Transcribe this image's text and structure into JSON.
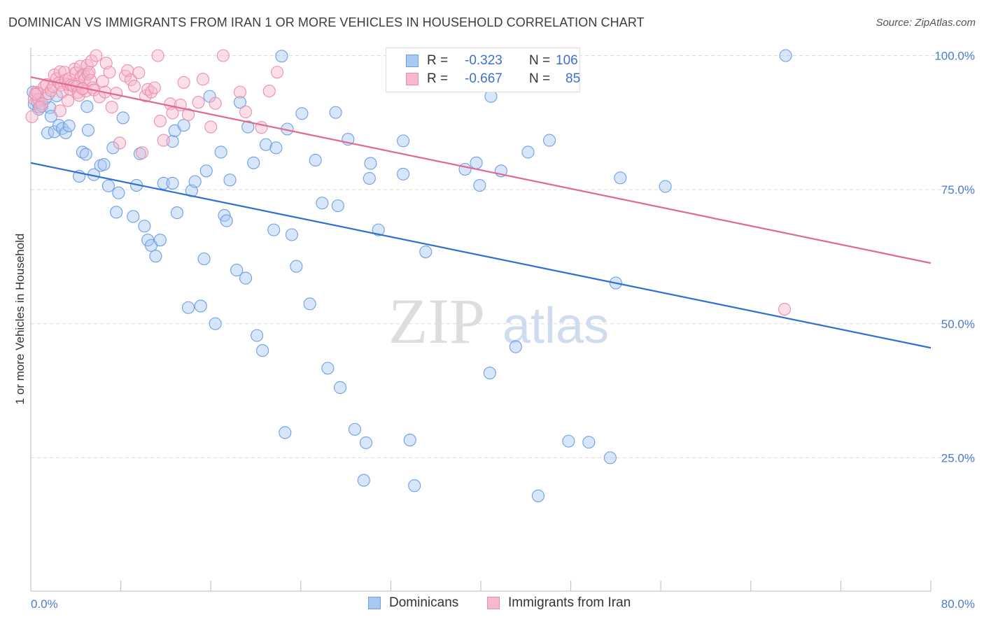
{
  "header": {
    "title": "DOMINICAN VS IMMIGRANTS FROM IRAN 1 OR MORE VEHICLES IN HOUSEHOLD CORRELATION CHART",
    "source": "Source: ZipAtlas.com"
  },
  "watermark": {
    "zip": "ZIP",
    "atlas": "atlas"
  },
  "legend": {
    "rows": [
      {
        "r_label": "R =",
        "r_value": "-0.323",
        "n_label": "N =",
        "n_value": "106"
      },
      {
        "r_label": "R =",
        "r_value": "-0.667",
        "n_label": "N =",
        "n_value": "85"
      }
    ]
  },
  "bottom_legend": {
    "series1": "Dominicans",
    "series2": "Immigrants from Iran"
  },
  "colors": {
    "blue_fill": "#a9c8f2",
    "blue_stroke": "#6d9ee6",
    "blue_line": "#2f6fd1",
    "pink_fill": "#f6b8cb",
    "pink_stroke": "#ea8fab",
    "pink_line": "#e0698f"
  },
  "chart_data": {
    "type": "scatter",
    "title": "DOMINICAN VS IMMIGRANTS FROM IRAN 1 OR MORE VEHICLES IN HOUSEHOLD CORRELATION CHART",
    "xlabel": "",
    "ylabel": "1 or more Vehicles in Household",
    "xlim": [
      0,
      80
    ],
    "ylim": [
      0,
      103
    ],
    "x_tick_labels": [
      "0.0%",
      "80.0%"
    ],
    "y_tick_labels": [
      "100.0%",
      "75.0%",
      "50.0%",
      "25.0%"
    ],
    "y_tick_values": [
      100,
      75,
      50,
      25
    ],
    "grid": true,
    "series": [
      {
        "name": "Dominicans",
        "trend": {
          "x": [
            0,
            80
          ],
          "y": [
            80.0,
            45.5
          ]
        },
        "points": [
          [
            0.2,
            93.2
          ],
          [
            0.3,
            91.0
          ],
          [
            0.6,
            91.3
          ],
          [
            0.7,
            90.0
          ],
          [
            1.0,
            90.6
          ],
          [
            1.5,
            85.6
          ],
          [
            1.7,
            90.3
          ],
          [
            2.1,
            85.8
          ],
          [
            2.5,
            87.0
          ],
          [
            2.8,
            86.4
          ],
          [
            3.1,
            85.6
          ],
          [
            3.4,
            86.9
          ],
          [
            4.3,
            77.5
          ],
          [
            4.6,
            82.0
          ],
          [
            4.9,
            81.6
          ],
          [
            5.1,
            86.1
          ],
          [
            5.6,
            77.8
          ],
          [
            6.2,
            79.5
          ],
          [
            6.5,
            79.7
          ],
          [
            6.9,
            75.7
          ],
          [
            7.3,
            82.8
          ],
          [
            7.6,
            70.8
          ],
          [
            7.8,
            74.4
          ],
          [
            8.2,
            88.4
          ],
          [
            9.1,
            70.0
          ],
          [
            9.4,
            75.8
          ],
          [
            9.7,
            81.7
          ],
          [
            10.1,
            68.2
          ],
          [
            10.4,
            65.6
          ],
          [
            10.7,
            64.6
          ],
          [
            11.1,
            62.6
          ],
          [
            11.5,
            65.6
          ],
          [
            11.8,
            76.2
          ],
          [
            12.6,
            76.2
          ],
          [
            12.6,
            84.0
          ],
          [
            12.8,
            86.0
          ],
          [
            13.0,
            70.7
          ],
          [
            13.6,
            87.0
          ],
          [
            14.0,
            53.0
          ],
          [
            14.3,
            74.8
          ],
          [
            14.6,
            76.5
          ],
          [
            15.1,
            53.3
          ],
          [
            15.4,
            62.1
          ],
          [
            15.6,
            78.5
          ],
          [
            15.9,
            92.4
          ],
          [
            16.4,
            50.0
          ],
          [
            16.9,
            82.0
          ],
          [
            17.2,
            70.2
          ],
          [
            17.4,
            69.2
          ],
          [
            17.7,
            76.8
          ],
          [
            18.3,
            60.0
          ],
          [
            18.6,
            91.3
          ],
          [
            19.1,
            58.5
          ],
          [
            19.3,
            86.7
          ],
          [
            19.8,
            80.0
          ],
          [
            20.1,
            47.8
          ],
          [
            20.6,
            45.0
          ],
          [
            20.9,
            83.4
          ],
          [
            21.6,
            67.5
          ],
          [
            21.8,
            82.8
          ],
          [
            22.3,
            99.9
          ],
          [
            22.6,
            29.7
          ],
          [
            22.8,
            86.3
          ],
          [
            23.2,
            66.6
          ],
          [
            23.6,
            60.7
          ],
          [
            24.1,
            89.2
          ],
          [
            24.8,
            53.7
          ],
          [
            25.3,
            80.5
          ],
          [
            25.9,
            72.5
          ],
          [
            26.4,
            41.7
          ],
          [
            27.1,
            89.4
          ],
          [
            27.3,
            72.0
          ],
          [
            27.5,
            38.1
          ],
          [
            28.2,
            84.4
          ],
          [
            28.8,
            30.3
          ],
          [
            29.6,
            20.8
          ],
          [
            29.8,
            27.8
          ],
          [
            30.1,
            77.1
          ],
          [
            30.2,
            79.9
          ],
          [
            30.9,
            67.5
          ],
          [
            33.1,
            77.9
          ],
          [
            33.1,
            84.1
          ],
          [
            33.7,
            28.3
          ],
          [
            34.1,
            19.8
          ],
          [
            35.1,
            63.4
          ],
          [
            38.6,
            78.8
          ],
          [
            39.6,
            80.0
          ],
          [
            39.9,
            75.8
          ],
          [
            40.8,
            40.8
          ],
          [
            40.9,
            92.4
          ],
          [
            41.8,
            78.5
          ],
          [
            43.1,
            45.7
          ],
          [
            44.2,
            82.0
          ],
          [
            45.1,
            17.9
          ],
          [
            46.1,
            84.2
          ],
          [
            47.8,
            28.1
          ],
          [
            49.6,
            27.9
          ],
          [
            51.5,
            25.0
          ],
          [
            52.0,
            57.6
          ],
          [
            52.4,
            77.2
          ],
          [
            56.4,
            75.6
          ],
          [
            67.1,
            100.0
          ],
          [
            1.3,
            92.0
          ],
          [
            2.3,
            92.5
          ],
          [
            5.0,
            90.5
          ],
          [
            1.8,
            88.7
          ]
        ]
      },
      {
        "name": "Immigrants from Iran",
        "trend": {
          "x": [
            0,
            80
          ],
          "y": [
            96.0,
            61.3
          ]
        },
        "points": [
          [
            0.1,
            88.6
          ],
          [
            0.3,
            91.9
          ],
          [
            0.5,
            93.2
          ],
          [
            0.6,
            93.0
          ],
          [
            0.7,
            91.8
          ],
          [
            1.0,
            91.0
          ],
          [
            1.2,
            94.2
          ],
          [
            1.4,
            94.6
          ],
          [
            1.6,
            92.9
          ],
          [
            1.8,
            93.5
          ],
          [
            2.0,
            94.2
          ],
          [
            2.1,
            96.4
          ],
          [
            2.3,
            95.7
          ],
          [
            2.5,
            94.9
          ],
          [
            2.6,
            97.0
          ],
          [
            2.7,
            94.5
          ],
          [
            2.8,
            93.2
          ],
          [
            3.0,
            96.9
          ],
          [
            3.1,
            95.4
          ],
          [
            3.3,
            94.6
          ],
          [
            3.4,
            95.7
          ],
          [
            3.5,
            93.7
          ],
          [
            3.6,
            94.5
          ],
          [
            3.8,
            94.3
          ],
          [
            3.9,
            97.5
          ],
          [
            4.0,
            96.8
          ],
          [
            4.1,
            94.3
          ],
          [
            4.2,
            93.1
          ],
          [
            4.3,
            92.6
          ],
          [
            4.4,
            98.0
          ],
          [
            4.5,
            96.2
          ],
          [
            4.6,
            93.9
          ],
          [
            4.7,
            96.5
          ],
          [
            4.8,
            95.6
          ],
          [
            4.9,
            93.4
          ],
          [
            5.0,
            98.2
          ],
          [
            5.1,
            96.5
          ],
          [
            5.2,
            96.9
          ],
          [
            5.3,
            95.4
          ],
          [
            5.4,
            99.0
          ],
          [
            5.5,
            94.0
          ],
          [
            5.6,
            93.6
          ],
          [
            5.8,
            100.0
          ],
          [
            6.1,
            92.3
          ],
          [
            6.4,
            95.2
          ],
          [
            6.6,
            93.2
          ],
          [
            6.7,
            98.6
          ],
          [
            7.0,
            96.9
          ],
          [
            7.2,
            90.4
          ],
          [
            7.6,
            93.0
          ],
          [
            7.9,
            83.7
          ],
          [
            8.4,
            96.2
          ],
          [
            8.6,
            97.2
          ],
          [
            8.9,
            95.5
          ],
          [
            9.2,
            94.3
          ],
          [
            9.6,
            96.8
          ],
          [
            9.9,
            81.9
          ],
          [
            10.2,
            92.5
          ],
          [
            10.4,
            93.7
          ],
          [
            10.7,
            93.2
          ],
          [
            11.0,
            94.0
          ],
          [
            11.3,
            100.0
          ],
          [
            11.5,
            87.8
          ],
          [
            11.8,
            84.2
          ],
          [
            12.4,
            91.0
          ],
          [
            12.6,
            89.3
          ],
          [
            13.3,
            90.8
          ],
          [
            13.6,
            95.0
          ],
          [
            14.0,
            89.0
          ],
          [
            14.9,
            91.3
          ],
          [
            15.3,
            95.6
          ],
          [
            16.0,
            86.7
          ],
          [
            16.4,
            91.1
          ],
          [
            17.1,
            100.0
          ],
          [
            18.6,
            93.2
          ],
          [
            19.1,
            89.5
          ],
          [
            20.5,
            86.6
          ],
          [
            21.2,
            93.4
          ],
          [
            21.9,
            96.9
          ],
          [
            0.8,
            90.4
          ],
          [
            2.6,
            89.7
          ],
          [
            3.3,
            91.6
          ],
          [
            4.6,
            93.8
          ],
          [
            67.0,
            52.7
          ],
          [
            0.4,
            92.8
          ]
        ]
      }
    ]
  }
}
